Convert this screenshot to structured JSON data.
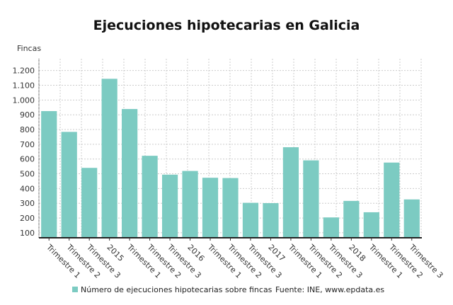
{
  "chart_data": {
    "type": "bar",
    "title": "Ejecuciones hipotecarias en Galicia",
    "ylabel": "Fincas",
    "xlabel": "",
    "ylim": [
      66,
      1280
    ],
    "yticks": [
      100,
      200,
      300,
      400,
      500,
      600,
      700,
      800,
      900,
      1000,
      1100,
      1200
    ],
    "ytick_labels": [
      "100",
      "200",
      "300",
      "400",
      "500",
      "600",
      "700",
      "800",
      "900",
      "1.000",
      "1.100",
      "1.200"
    ],
    "categories": [
      "Trimestre 1",
      "Trimestre 2",
      "Trimestre 3",
      "2015",
      "Trimestre 1",
      "Trimestre 2",
      "Trimestre 3",
      "2016",
      "Trimestre 1",
      "Trimestre 2",
      "Trimestre 3",
      "2017",
      "Trimestre 1",
      "Trimestre 2",
      "Trimestre 3",
      "2018",
      "Trimestre 1",
      "Trimestre 2",
      "Trimestre 3"
    ],
    "series": [
      {
        "name": "Número de ejecuciones hipotecarias sobre fincas",
        "values": [
          925,
          784,
          540,
          1144,
          939,
          622,
          494,
          519,
          473,
          471,
          303,
          301,
          680,
          591,
          204,
          316,
          239,
          576,
          326
        ]
      }
    ],
    "grid": true,
    "legend": "bottom",
    "source": "Fuente: INE, www.epdata.es",
    "colors": {
      "bar": "#7ccbc2"
    }
  }
}
